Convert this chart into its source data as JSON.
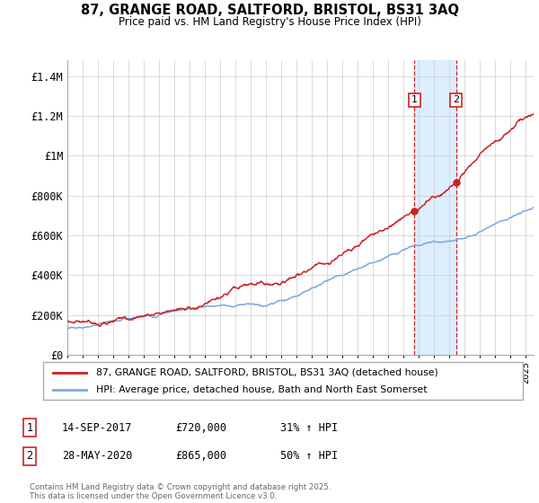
{
  "title_line1": "87, GRANGE ROAD, SALTFORD, BRISTOL, BS31 3AQ",
  "title_line2": "Price paid vs. HM Land Registry's House Price Index (HPI)",
  "ylabel_ticks": [
    "£0",
    "£200K",
    "£400K",
    "£600K",
    "£800K",
    "£1M",
    "£1.2M",
    "£1.4M"
  ],
  "ytick_values": [
    0,
    200000,
    400000,
    600000,
    800000,
    1000000,
    1200000,
    1400000
  ],
  "ylim": [
    0,
    1480000
  ],
  "xlim_start": 1995.0,
  "xlim_end": 2025.5,
  "legend_line1": "87, GRANGE ROAD, SALTFORD, BRISTOL, BS31 3AQ (detached house)",
  "legend_line2": "HPI: Average price, detached house, Bath and North East Somerset",
  "sale1_date": "14-SEP-2017",
  "sale1_price": "£720,000",
  "sale1_hpi": "31% ↑ HPI",
  "sale1_year": 2017.71,
  "sale1_value": 720000,
  "sale2_date": "28-MAY-2020",
  "sale2_price": "£865,000",
  "sale2_hpi": "50% ↑ HPI",
  "sale2_year": 2020.42,
  "sale2_value": 865000,
  "red_color": "#cc2222",
  "blue_color": "#7aaadd",
  "shade_color": "#ddeeff",
  "grid_color": "#cccccc",
  "footnote": "Contains HM Land Registry data © Crown copyright and database right 2025.\nThis data is licensed under the Open Government Licence v3.0."
}
